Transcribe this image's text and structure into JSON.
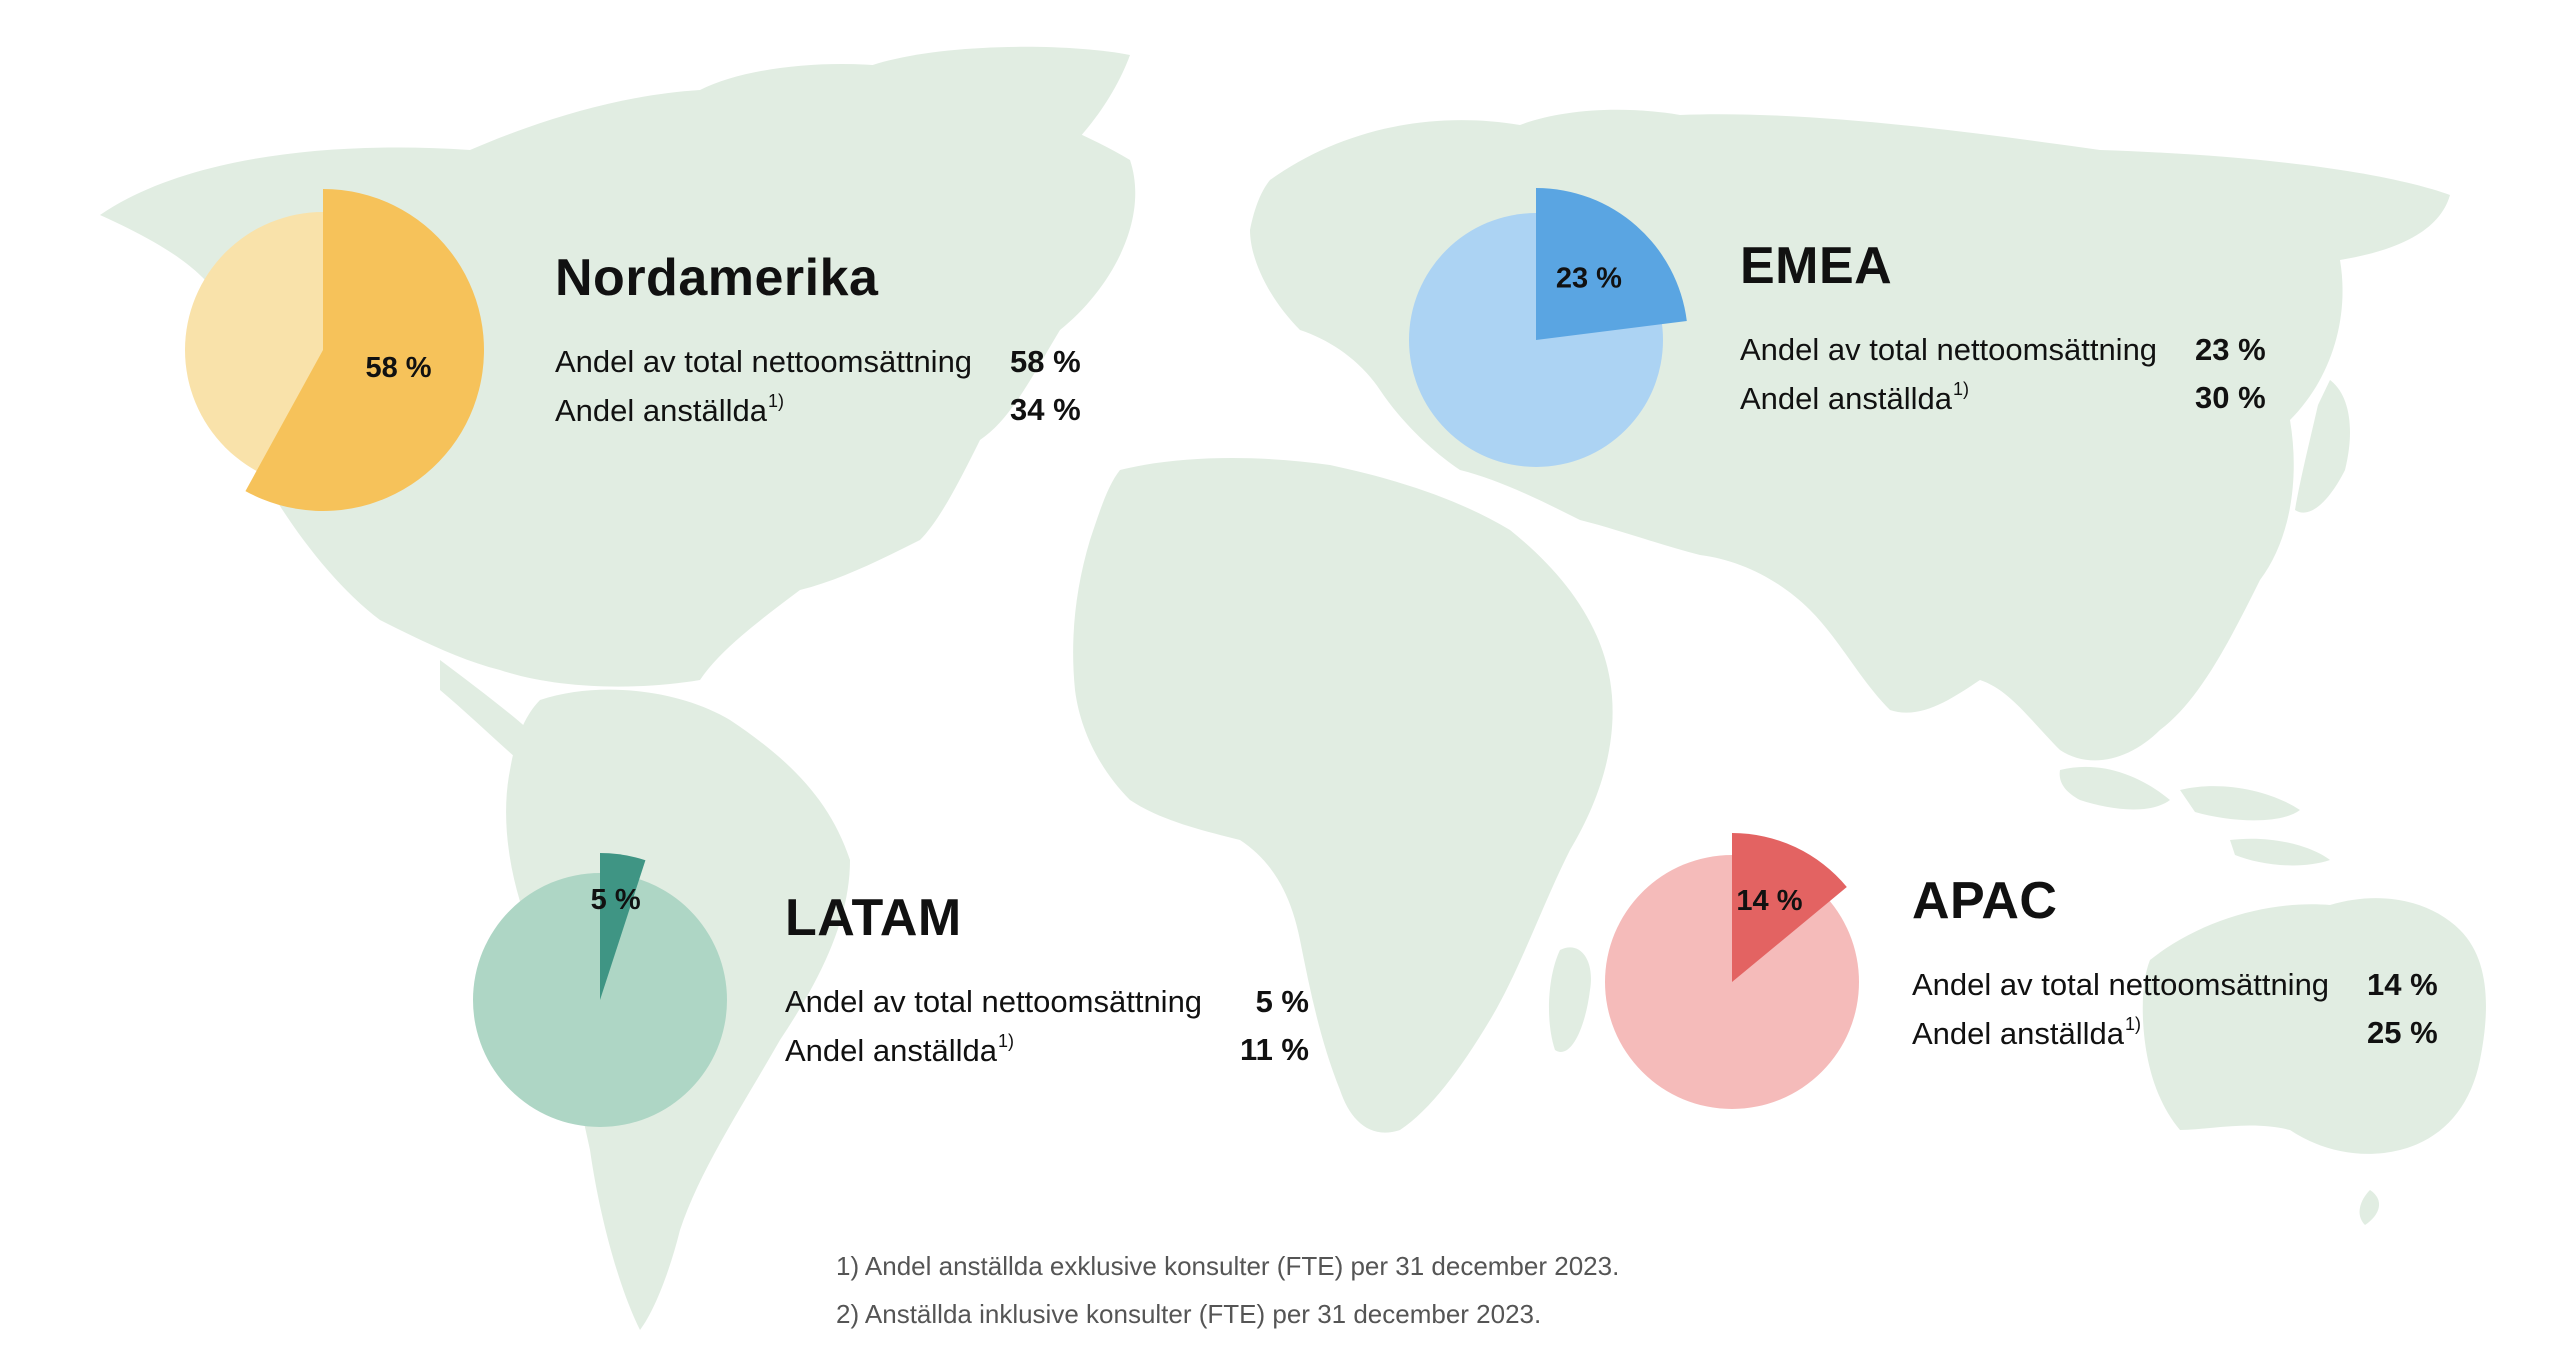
{
  "colors": {
    "land": "#e1ede2",
    "nordamerika_main": "#f6c25a",
    "nordamerika_rest": "#f9e2aa",
    "emea_main": "#5aa5e2",
    "emea_rest": "#acd3f3",
    "latam_main": "#3f9584",
    "latam_rest": "#aed6c5",
    "apac_main": "#e36362",
    "apac_rest": "#f5bbba"
  },
  "chart_data": {
    "type": "pie",
    "regions": [
      {
        "key": "nordamerika",
        "name": "Nordamerika",
        "revenue_share": 58,
        "revenue_label": "58 %",
        "employee_share": 34,
        "employee_label": "34 %"
      },
      {
        "key": "emea",
        "name": "EMEA",
        "revenue_share": 23,
        "revenue_label": "23 %",
        "employee_share": 30,
        "employee_label": "30 %"
      },
      {
        "key": "latam",
        "name": "LATAM",
        "revenue_share": 5,
        "revenue_label": "5 %",
        "employee_share": 11,
        "employee_label": "11 %"
      },
      {
        "key": "apac",
        "name": "APAC",
        "revenue_share": 14,
        "revenue_label": "14 %",
        "employee_share": 25,
        "employee_label": "25 %"
      }
    ]
  },
  "labels": {
    "revenue": "Andel av total nettoomsättning",
    "employees": "Andel anställda",
    "employees_ref": "1)"
  },
  "footnotes": [
    "1)  Andel anställda exklusive konsulter (FTE) per 31 december 2023.",
    "2) Anställda inklusive konsulter (FTE) per 31 december 2023."
  ]
}
